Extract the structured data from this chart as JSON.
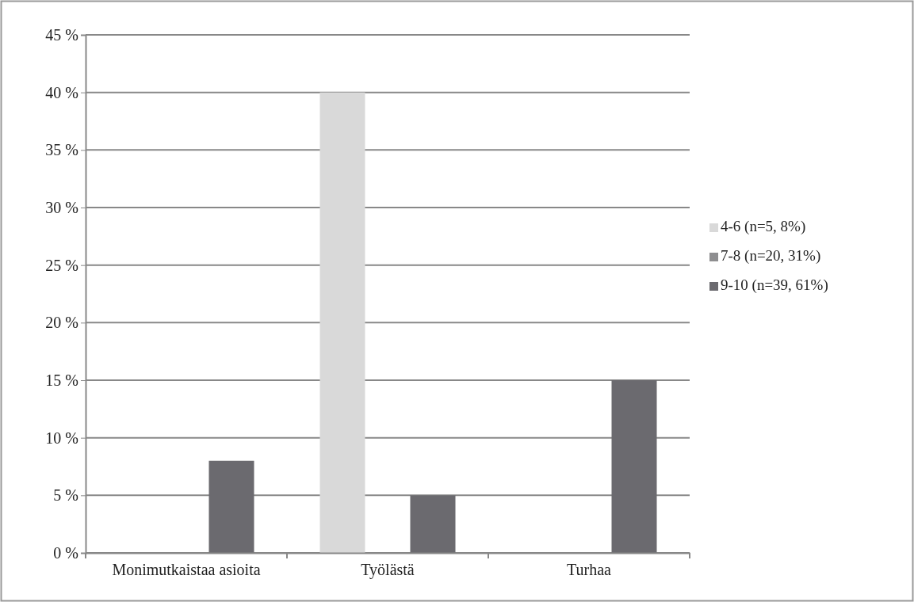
{
  "chart_data": {
    "type": "bar",
    "categories": [
      "Monimutkaistaa asioita",
      "Työlästä",
      "Turhaa"
    ],
    "series": [
      {
        "name": "4-6 (n=5, 8%)",
        "color": "#d9d9d9",
        "values": [
          0,
          40,
          0
        ]
      },
      {
        "name": "7-8 (n=20, 31%)",
        "color": "#8e8e90",
        "values": [
          0,
          0,
          0
        ]
      },
      {
        "name": "9-10 (n=39, 61%)",
        "color": "#6b6a6f",
        "values": [
          8,
          5,
          15
        ]
      }
    ],
    "ylim": [
      0,
      45
    ],
    "yticks": [
      {
        "value": 0,
        "label": "0 %"
      },
      {
        "value": 5,
        "label": "5 %"
      },
      {
        "value": 10,
        "label": "10 %"
      },
      {
        "value": 15,
        "label": "15 %"
      },
      {
        "value": 20,
        "label": "20 %"
      },
      {
        "value": 25,
        "label": "25 %"
      },
      {
        "value": 30,
        "label": "30 %"
      },
      {
        "value": 35,
        "label": "35 %"
      },
      {
        "value": 40,
        "label": "40 %"
      },
      {
        "value": 45,
        "label": "45 %"
      }
    ],
    "grid": "y",
    "legend": "right"
  }
}
